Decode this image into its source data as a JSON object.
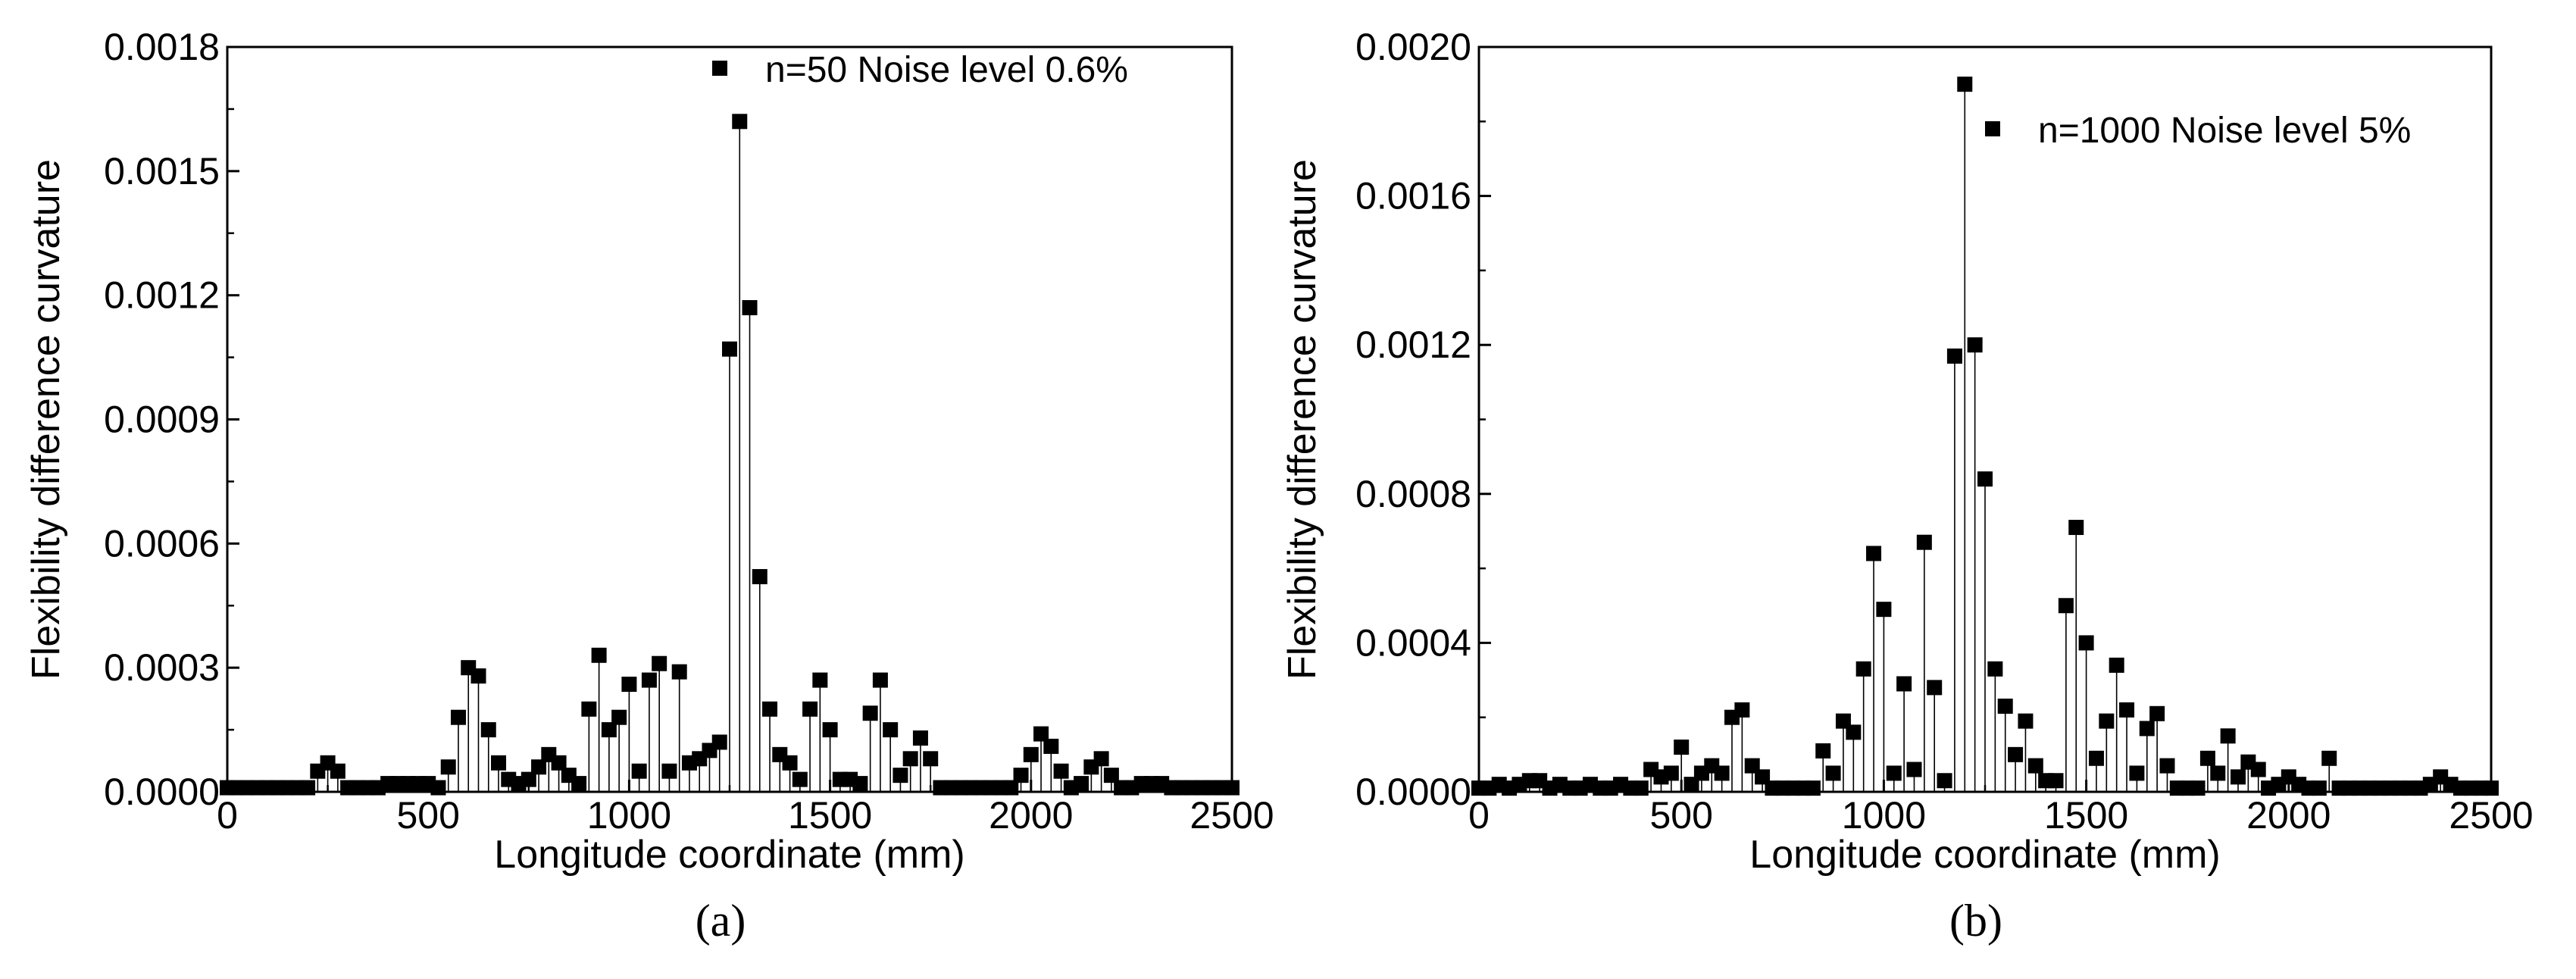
{
  "figure": {
    "panels": [
      {
        "label": "(a)"
      },
      {
        "label": "(b)"
      }
    ]
  },
  "chart_data": [
    {
      "type": "scatter",
      "style": "drop-lines-to-baseline",
      "marker": "square",
      "panel_label": "(a)",
      "title": "",
      "xlabel": "Longitude coordinate (mm)",
      "ylabel": "Flexibility difference curvature",
      "xlim": [
        0,
        2500
      ],
      "ylim": [
        0,
        0.0018
      ],
      "xticks": [
        0,
        500,
        1000,
        1500,
        2000,
        2500
      ],
      "xtick_labels": [
        "0",
        "500",
        "1000",
        "1500",
        "2000",
        "2500"
      ],
      "yticks": [
        0,
        0.0003,
        0.0006,
        0.0009,
        0.0012,
        0.0015,
        0.0018
      ],
      "ytick_labels": [
        "0.0000",
        "0.0003",
        "0.0006",
        "0.0009",
        "0.0012",
        "0.0015",
        "0.0018"
      ],
      "legend": {
        "label": "n=50 Noise level 0.6%",
        "position": "top-right"
      },
      "grid": false,
      "series": [
        {
          "name": "n=50 Noise level 0.6%",
          "x": [
            0,
            25,
            50,
            75,
            100,
            125,
            150,
            175,
            200,
            225,
            250,
            275,
            300,
            325,
            350,
            375,
            400,
            425,
            450,
            475,
            500,
            525,
            550,
            575,
            600,
            625,
            650,
            675,
            700,
            725,
            750,
            775,
            800,
            825,
            850,
            875,
            900,
            925,
            950,
            975,
            1000,
            1025,
            1050,
            1075,
            1100,
            1125,
            1150,
            1175,
            1200,
            1225,
            1250,
            1275,
            1300,
            1325,
            1350,
            1375,
            1400,
            1425,
            1450,
            1475,
            1500,
            1525,
            1550,
            1575,
            1600,
            1625,
            1650,
            1675,
            1700,
            1725,
            1750,
            1775,
            1800,
            1825,
            1850,
            1875,
            1900,
            1925,
            1950,
            1975,
            2000,
            2025,
            2050,
            2075,
            2100,
            2125,
            2150,
            2175,
            2200,
            2225,
            2250,
            2275,
            2300,
            2325,
            2350,
            2375,
            2400,
            2425,
            2450,
            2475,
            2500
          ],
          "y": [
            1e-05,
            1e-05,
            1e-05,
            1e-05,
            1e-05,
            1e-05,
            1e-05,
            1e-05,
            1e-05,
            5e-05,
            7e-05,
            5e-05,
            1e-05,
            1e-05,
            1e-05,
            1e-05,
            2e-05,
            2e-05,
            2e-05,
            2e-05,
            2e-05,
            1e-05,
            6e-05,
            0.00018,
            0.0003,
            0.00028,
            0.00015,
            7e-05,
            3e-05,
            2e-05,
            3e-05,
            6e-05,
            9e-05,
            7e-05,
            4e-05,
            2e-05,
            0.0002,
            0.00033,
            0.00015,
            0.00018,
            0.00026,
            5e-05,
            0.00027,
            0.00031,
            5e-05,
            0.00029,
            7e-05,
            8e-05,
            0.0001,
            0.00012,
            0.00107,
            0.00162,
            0.00117,
            0.00052,
            0.0002,
            9e-05,
            7e-05,
            3e-05,
            0.0002,
            0.00027,
            0.00015,
            3e-05,
            3e-05,
            2e-05,
            0.00019,
            0.00027,
            0.00015,
            4e-05,
            8e-05,
            0.00013,
            8e-05,
            1e-05,
            1e-05,
            1e-05,
            1e-05,
            1e-05,
            1e-05,
            1e-05,
            1e-05,
            4e-05,
            9e-05,
            0.00014,
            0.00011,
            5e-05,
            1e-05,
            2e-05,
            6e-05,
            8e-05,
            4e-05,
            1e-05,
            1e-05,
            2e-05,
            2e-05,
            2e-05,
            1e-05,
            1e-05,
            1e-05,
            1e-05,
            1e-05,
            1e-05,
            1e-05
          ]
        }
      ]
    },
    {
      "type": "scatter",
      "style": "drop-lines-to-baseline",
      "marker": "square",
      "panel_label": "(b)",
      "title": "",
      "xlabel": "Longitude coordinate (mm)",
      "ylabel": "Flexibility difference curvature",
      "xlim": [
        0,
        2500
      ],
      "ylim": [
        0,
        0.002
      ],
      "xticks": [
        0,
        500,
        1000,
        1500,
        2000,
        2500
      ],
      "xtick_labels": [
        "0",
        "500",
        "1000",
        "1500",
        "2000",
        "2500"
      ],
      "yticks": [
        0,
        0.0004,
        0.0008,
        0.0012,
        0.0016,
        0.002
      ],
      "ytick_labels": [
        "0.0000",
        "0.0004",
        "0.0008",
        "0.0012",
        "0.0016",
        "0.0020"
      ],
      "legend": {
        "label": "n=1000 Noise level 5%",
        "position": "top-right"
      },
      "grid": false,
      "series": [
        {
          "name": "n=1000 Noise level 5%",
          "x": [
            0,
            25,
            50,
            75,
            100,
            125,
            150,
            175,
            200,
            225,
            250,
            275,
            300,
            325,
            350,
            375,
            400,
            425,
            450,
            475,
            500,
            525,
            550,
            575,
            600,
            625,
            650,
            675,
            700,
            725,
            750,
            775,
            800,
            825,
            850,
            875,
            900,
            925,
            950,
            975,
            1000,
            1025,
            1050,
            1075,
            1100,
            1125,
            1150,
            1175,
            1200,
            1225,
            1250,
            1275,
            1300,
            1325,
            1350,
            1375,
            1400,
            1425,
            1450,
            1475,
            1500,
            1525,
            1550,
            1575,
            1600,
            1625,
            1650,
            1675,
            1700,
            1725,
            1750,
            1775,
            1800,
            1825,
            1850,
            1875,
            1900,
            1925,
            1950,
            1975,
            2000,
            2025,
            2050,
            2075,
            2100,
            2125,
            2150,
            2175,
            2200,
            2225,
            2250,
            2275,
            2300,
            2325,
            2350,
            2375,
            2400,
            2425,
            2450,
            2475,
            2500
          ],
          "y": [
            1e-05,
            1e-05,
            2e-05,
            1e-05,
            2e-05,
            3e-05,
            3e-05,
            1e-05,
            2e-05,
            1e-05,
            1e-05,
            2e-05,
            1e-05,
            1e-05,
            2e-05,
            1e-05,
            1e-05,
            6e-05,
            4e-05,
            5e-05,
            0.00012,
            2e-05,
            5e-05,
            7e-05,
            5e-05,
            0.0002,
            0.00022,
            7e-05,
            4e-05,
            1e-05,
            1e-05,
            1e-05,
            1e-05,
            1e-05,
            0.00011,
            5e-05,
            0.00019,
            0.00016,
            0.00033,
            0.00064,
            0.00049,
            5e-05,
            0.00029,
            6e-05,
            0.00067,
            0.00028,
            3e-05,
            0.00117,
            0.0019,
            0.0012,
            0.00084,
            0.00033,
            0.00023,
            0.0001,
            0.00019,
            7e-05,
            3e-05,
            3e-05,
            0.0005,
            0.00071,
            0.0004,
            9e-05,
            0.00019,
            0.00034,
            0.00022,
            5e-05,
            0.00017,
            0.00021,
            7e-05,
            1e-05,
            1e-05,
            1e-05,
            9e-05,
            5e-05,
            0.00015,
            4e-05,
            8e-05,
            6e-05,
            1e-05,
            2e-05,
            4e-05,
            2e-05,
            1e-05,
            1e-05,
            9e-05,
            1e-05,
            1e-05,
            1e-05,
            1e-05,
            1e-05,
            1e-05,
            1e-05,
            1e-05,
            1e-05,
            2e-05,
            4e-05,
            2e-05,
            1e-05,
            1e-05,
            1e-05,
            1e-05
          ]
        }
      ]
    }
  ]
}
